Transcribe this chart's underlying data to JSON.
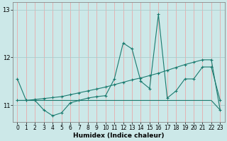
{
  "xlabel": "Humidex (Indice chaleur)",
  "bg_color": "#cce8e8",
  "grid_color_v": "#e8aaaa",
  "grid_color_h": "#aacccc",
  "line_color": "#1a7a6e",
  "xlim": [
    -0.5,
    23.5
  ],
  "ylim": [
    10.65,
    13.15
  ],
  "yticks": [
    11,
    12,
    13
  ],
  "xticks": [
    0,
    1,
    2,
    3,
    4,
    5,
    6,
    7,
    8,
    9,
    10,
    11,
    12,
    13,
    14,
    15,
    16,
    17,
    18,
    19,
    20,
    21,
    22,
    23
  ],
  "x": [
    0,
    1,
    2,
    3,
    4,
    5,
    6,
    7,
    8,
    9,
    10,
    11,
    12,
    13,
    14,
    15,
    16,
    17,
    18,
    19,
    20,
    21,
    22,
    23
  ],
  "line1": [
    11.55,
    11.1,
    11.1,
    10.9,
    10.78,
    10.84,
    11.05,
    11.1,
    11.15,
    11.18,
    11.2,
    11.55,
    12.3,
    12.18,
    11.5,
    11.35,
    12.9,
    11.15,
    11.3,
    11.55,
    11.55,
    11.8,
    11.8,
    11.1
  ],
  "line2": [
    11.1,
    11.1,
    11.12,
    11.14,
    11.16,
    11.18,
    11.22,
    11.26,
    11.3,
    11.34,
    11.38,
    11.43,
    11.48,
    11.53,
    11.57,
    11.62,
    11.67,
    11.73,
    11.79,
    11.85,
    11.9,
    11.95,
    11.95,
    10.9
  ],
  "line3": [
    11.1,
    11.1,
    11.1,
    11.1,
    11.1,
    11.1,
    11.1,
    11.1,
    11.1,
    11.1,
    11.1,
    11.1,
    11.1,
    11.1,
    11.1,
    11.1,
    11.1,
    11.1,
    11.1,
    11.1,
    11.1,
    11.1,
    11.1,
    10.9
  ]
}
